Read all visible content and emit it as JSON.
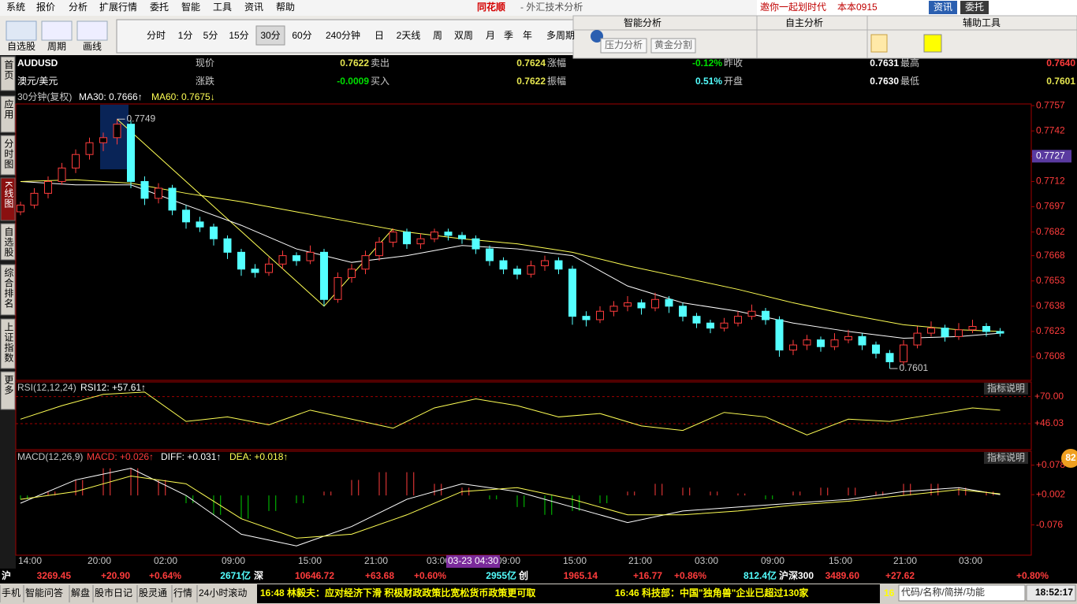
{
  "menu": [
    "系统",
    "报价",
    "分析",
    "扩展行情",
    "委托",
    "智能",
    "工具",
    "资讯",
    "帮助"
  ],
  "logo": "同花顺",
  "window_title": "- 外汇技术分析",
  "promo": "邀你一起划时代",
  "version": "本本0915",
  "top_buttons": [
    "资讯",
    "委托"
  ],
  "tools": [
    "自选股",
    "周期",
    "画线"
  ],
  "periods": [
    "分时",
    "1分",
    "5分",
    "15分",
    "30分",
    "60分",
    "240分钟",
    "日",
    "2天线",
    "周",
    "双周",
    "月",
    "季",
    "年",
    "多周期"
  ],
  "panels": [
    "智能分析",
    "自主分析",
    "辅助工具"
  ],
  "panel_buttons": [
    "压力分析",
    "黄金分割"
  ],
  "side_tabs": [
    "首页",
    "应用",
    "分时图",
    "K线图",
    "自选股",
    "综合排名",
    "上证指数",
    "更多"
  ],
  "quote": {
    "symbol": "AUDUSD",
    "name": "澳元/美元",
    "row1": [
      [
        "现价",
        "0.7622"
      ],
      [
        "卖出",
        "0.7624"
      ],
      [
        "涨幅",
        "-0.12%"
      ],
      [
        "昨收",
        "0.7631"
      ],
      [
        "最高",
        "0.7640"
      ]
    ],
    "row2": [
      [
        "涨跌",
        "-0.0009"
      ],
      [
        "买入",
        "0.7622"
      ],
      [
        "振幅",
        "0.51%"
      ],
      [
        "开盘",
        "0.7630"
      ],
      [
        "最低",
        "0.7601"
      ]
    ]
  },
  "chart_data": {
    "type": "candlestick",
    "period_label": "30分钟(复权)",
    "ma_labels": [
      "MA30: 0.7666↑",
      "MA60: 0.7675↓"
    ],
    "ylim": [
      0.7594,
      0.7758
    ],
    "yticks": [
      0.7757,
      0.7742,
      0.7727,
      0.7712,
      0.7697,
      0.7682,
      0.7668,
      0.7653,
      0.7638,
      0.7623,
      0.7608
    ],
    "highlight_tick": 2,
    "up_color": "#ff3c3c",
    "down_color": "#54ffff",
    "candles": [
      [
        0.7694,
        0.77,
        0.7692,
        0.7698
      ],
      [
        0.7698,
        0.7708,
        0.7696,
        0.7705
      ],
      [
        0.7705,
        0.7715,
        0.7702,
        0.7712
      ],
      [
        0.7712,
        0.7723,
        0.771,
        0.772
      ],
      [
        0.772,
        0.7731,
        0.7717,
        0.7728
      ],
      [
        0.7728,
        0.7738,
        0.7725,
        0.7735
      ],
      [
        0.7735,
        0.7741,
        0.773,
        0.7738
      ],
      [
        0.7738,
        0.7749,
        0.7734,
        0.7746
      ],
      [
        0.7746,
        0.7748,
        0.7708,
        0.7712
      ],
      [
        0.7712,
        0.7715,
        0.7698,
        0.7702
      ],
      [
        0.7702,
        0.7711,
        0.7699,
        0.7708
      ],
      [
        0.7708,
        0.771,
        0.7692,
        0.7695
      ],
      [
        0.7695,
        0.7698,
        0.7684,
        0.7688
      ],
      [
        0.7688,
        0.7691,
        0.7682,
        0.7685
      ],
      [
        0.7685,
        0.7687,
        0.7674,
        0.7678
      ],
      [
        0.7678,
        0.768,
        0.7666,
        0.767
      ],
      [
        0.767,
        0.7672,
        0.7656,
        0.766
      ],
      [
        0.766,
        0.7663,
        0.7655,
        0.7658
      ],
      [
        0.7658,
        0.7667,
        0.7656,
        0.7663
      ],
      [
        0.7663,
        0.7671,
        0.766,
        0.7668
      ],
      [
        0.7668,
        0.767,
        0.7662,
        0.7665
      ],
      [
        0.7665,
        0.7674,
        0.7663,
        0.767
      ],
      [
        0.767,
        0.7672,
        0.7638,
        0.7642
      ],
      [
        0.7642,
        0.7658,
        0.764,
        0.7655
      ],
      [
        0.7655,
        0.7663,
        0.7652,
        0.766
      ],
      [
        0.766,
        0.7671,
        0.7657,
        0.7668
      ],
      [
        0.7668,
        0.7679,
        0.7665,
        0.7676
      ],
      [
        0.7676,
        0.7684,
        0.7673,
        0.7682
      ],
      [
        0.7682,
        0.7684,
        0.7672,
        0.7675
      ],
      [
        0.7675,
        0.7681,
        0.7672,
        0.7678
      ],
      [
        0.7678,
        0.7684,
        0.7676,
        0.7682
      ],
      [
        0.7682,
        0.7684,
        0.7677,
        0.768
      ],
      [
        0.768,
        0.7682,
        0.7675,
        0.7678
      ],
      [
        0.7678,
        0.768,
        0.7669,
        0.7672
      ],
      [
        0.7672,
        0.7674,
        0.7662,
        0.7665
      ],
      [
        0.7665,
        0.7667,
        0.7657,
        0.766
      ],
      [
        0.766,
        0.7662,
        0.7654,
        0.7657
      ],
      [
        0.7657,
        0.7665,
        0.7655,
        0.7662
      ],
      [
        0.7662,
        0.7668,
        0.7659,
        0.7665
      ],
      [
        0.7665,
        0.7667,
        0.7657,
        0.766
      ],
      [
        0.766,
        0.7662,
        0.7627,
        0.7632
      ],
      [
        0.7632,
        0.7635,
        0.7626,
        0.763
      ],
      [
        0.763,
        0.7638,
        0.7628,
        0.7635
      ],
      [
        0.7635,
        0.7641,
        0.7632,
        0.7638
      ],
      [
        0.7638,
        0.7644,
        0.7635,
        0.764
      ],
      [
        0.764,
        0.7642,
        0.7633,
        0.7637
      ],
      [
        0.7637,
        0.7646,
        0.7635,
        0.7642
      ],
      [
        0.7642,
        0.7644,
        0.7634,
        0.7638
      ],
      [
        0.7638,
        0.764,
        0.7629,
        0.7632
      ],
      [
        0.7632,
        0.7634,
        0.7625,
        0.7628
      ],
      [
        0.7628,
        0.763,
        0.7622,
        0.7625
      ],
      [
        0.7625,
        0.7631,
        0.7623,
        0.7628
      ],
      [
        0.7628,
        0.7635,
        0.7626,
        0.7632
      ],
      [
        0.7632,
        0.7639,
        0.763,
        0.7635
      ],
      [
        0.7635,
        0.7637,
        0.7627,
        0.763
      ],
      [
        0.763,
        0.7632,
        0.7608,
        0.7612
      ],
      [
        0.7612,
        0.7618,
        0.7609,
        0.7615
      ],
      [
        0.7615,
        0.7621,
        0.7612,
        0.7618
      ],
      [
        0.7618,
        0.762,
        0.7611,
        0.7614
      ],
      [
        0.7614,
        0.7622,
        0.7612,
        0.7618
      ],
      [
        0.7618,
        0.7624,
        0.7616,
        0.762
      ],
      [
        0.762,
        0.7622,
        0.7612,
        0.7615
      ],
      [
        0.7615,
        0.7617,
        0.7607,
        0.761
      ],
      [
        0.761,
        0.7612,
        0.7601,
        0.7605
      ],
      [
        0.7605,
        0.7618,
        0.7603,
        0.7615
      ],
      [
        0.7615,
        0.7626,
        0.7613,
        0.7622
      ],
      [
        0.7622,
        0.7629,
        0.762,
        0.7625
      ],
      [
        0.7625,
        0.7627,
        0.7617,
        0.762
      ],
      [
        0.762,
        0.7628,
        0.7618,
        0.7624
      ],
      [
        0.7624,
        0.763,
        0.7622,
        0.7626
      ],
      [
        0.7626,
        0.7628,
        0.762,
        0.7623
      ],
      [
        0.7623,
        0.7625,
        0.762,
        0.7622
      ]
    ],
    "ma": [
      {
        "color": "#ffffff",
        "x": [
          0,
          4,
          8,
          12,
          16,
          20,
          24,
          28,
          32,
          36,
          40,
          44,
          48,
          52,
          56,
          60,
          64,
          68,
          71
        ],
        "values": [
          0.7712,
          0.771,
          0.771,
          0.7698,
          0.7686,
          0.7672,
          0.7664,
          0.7668,
          0.7674,
          0.7672,
          0.7668,
          0.765,
          0.764,
          0.7635,
          0.7628,
          0.7623,
          0.7619,
          0.762,
          0.7622
        ]
      },
      {
        "color": "#ffff54",
        "x": [
          0,
          4,
          8,
          12,
          16,
          20,
          24,
          28,
          32,
          36,
          40,
          44,
          48,
          52,
          56,
          60,
          64,
          68,
          71
        ],
        "values": [
          0.7712,
          0.7713,
          0.7711,
          0.7705,
          0.77,
          0.7694,
          0.7688,
          0.7682,
          0.7678,
          0.7675,
          0.767,
          0.7662,
          0.7655,
          0.7648,
          0.764,
          0.7633,
          0.7627,
          0.7624,
          0.7623
        ]
      }
    ],
    "annotations": [
      {
        "x": 7,
        "value": 0.7749
      },
      {
        "x": 63,
        "value": 0.7601
      }
    ],
    "x_labels": [
      "14:00",
      "20:00",
      "02:00",
      "09:00",
      "15:00",
      "21:00",
      "03:00",
      "09:00",
      "15:00",
      "21:00",
      "03:00",
      "09:00",
      "15:00",
      "21:00",
      "03:00"
    ],
    "crosshair_time": "03-23 04:30",
    "rsi": {
      "label": "RSI(12,12,24)",
      "value_label": "RSI12: +57.61↑",
      "help": "指标说明",
      "ylim": [
        23,
        83
      ],
      "yticks": [
        {
          "value": 70,
          "label": "+70.00"
        },
        {
          "value": 46.03,
          "label": "+46.03"
        }
      ],
      "color": "#ffff54",
      "x": [
        0,
        3,
        6,
        9,
        12,
        15,
        18,
        21,
        24,
        27,
        30,
        33,
        36,
        39,
        42,
        45,
        48,
        51,
        54,
        57,
        60,
        63,
        66,
        69,
        71
      ],
      "values": [
        50,
        62,
        72,
        74,
        48,
        52,
        45,
        58,
        50,
        42,
        60,
        68,
        62,
        52,
        55,
        44,
        40,
        56,
        52,
        36,
        50,
        48,
        54,
        60,
        58
      ]
    },
    "macd": {
      "label": "MACD(12,26,9)",
      "value_labels": [
        "MACD: +0.026↑",
        "DIFF: +0.031↑",
        "DEA: +0.018↑"
      ],
      "help": "指标说明",
      "ylim": [
        -0.154,
        0.114
      ],
      "yticks": [
        {
          "value": 0.078,
          "label": "+0.078"
        },
        {
          "value": 0.002,
          "label": "+0.002"
        },
        -0.076
      ],
      "hist_x": [
        0,
        2,
        4,
        6,
        8,
        10,
        12,
        14,
        16,
        18,
        20,
        22,
        24,
        26,
        28,
        30,
        32,
        34,
        36,
        38,
        40,
        42,
        44,
        46,
        48,
        50,
        52,
        54,
        56,
        58,
        60,
        62,
        64,
        66,
        68,
        70
      ],
      "hist": [
        -0.01,
        0.01,
        0.04,
        0.07,
        0.07,
        0.04,
        -0.02,
        -0.05,
        -0.06,
        -0.04,
        -0.02,
        0.01,
        0.04,
        0.06,
        0.06,
        0.03,
        0.02,
        -0.01,
        -0.03,
        -0.05,
        -0.04,
        -0.02,
        0.01,
        0.03,
        0.02,
        0.01,
        0.005,
        -0.01,
        0.01,
        0.02,
        0.02,
        0.01,
        0.03,
        0.03,
        0.02,
        0.01
      ],
      "lines": [
        {
          "color": "#ffffff",
          "x": [
            0,
            4,
            8,
            12,
            16,
            20,
            24,
            28,
            32,
            36,
            40,
            44,
            48,
            52,
            56,
            60,
            64,
            68,
            71
          ],
          "values": [
            -0.02,
            0.04,
            0.07,
            0.0,
            -0.1,
            -0.13,
            -0.08,
            -0.01,
            0.03,
            0.01,
            -0.03,
            -0.07,
            -0.04,
            -0.03,
            -0.02,
            -0.01,
            0.01,
            0.02,
            0.002
          ]
        },
        {
          "color": "#ffff54",
          "x": [
            0,
            4,
            8,
            12,
            16,
            20,
            24,
            28,
            32,
            36,
            40,
            44,
            48,
            52,
            56,
            60,
            64,
            68,
            71
          ],
          "values": [
            -0.01,
            0.01,
            0.05,
            0.03,
            -0.06,
            -0.11,
            -0.1,
            -0.05,
            0.01,
            0.02,
            -0.01,
            -0.05,
            -0.05,
            -0.04,
            -0.025,
            -0.015,
            0.0,
            0.015,
            0.004
          ]
        }
      ]
    }
  },
  "ticker": [
    "沪",
    "3269.45",
    "+20.90",
    "+0.64%",
    "2671亿",
    "深",
    "10646.72",
    "+63.68",
    "+0.60%",
    "2955亿",
    "创",
    "1965.14",
    "+16.77",
    "+0.86%",
    "812.4亿",
    "沪深300",
    "3489.60",
    "+27.62",
    "+0.80%"
  ],
  "status_buttons": [
    "手机",
    "智能问答",
    "解盘",
    "股市日记",
    "股灵通",
    "行情",
    "24小时滚动"
  ],
  "news": [
    "16:48 林毅夫：应对经济下滑 积极财政政策比宽松货币政策更可取",
    "16:46 科技部：中国\"独角兽\"企业已超过130家"
  ],
  "page_number": "16",
  "search_hint": "代码/名称/简拼/功能",
  "clock": "18:52:17",
  "badge": "82"
}
